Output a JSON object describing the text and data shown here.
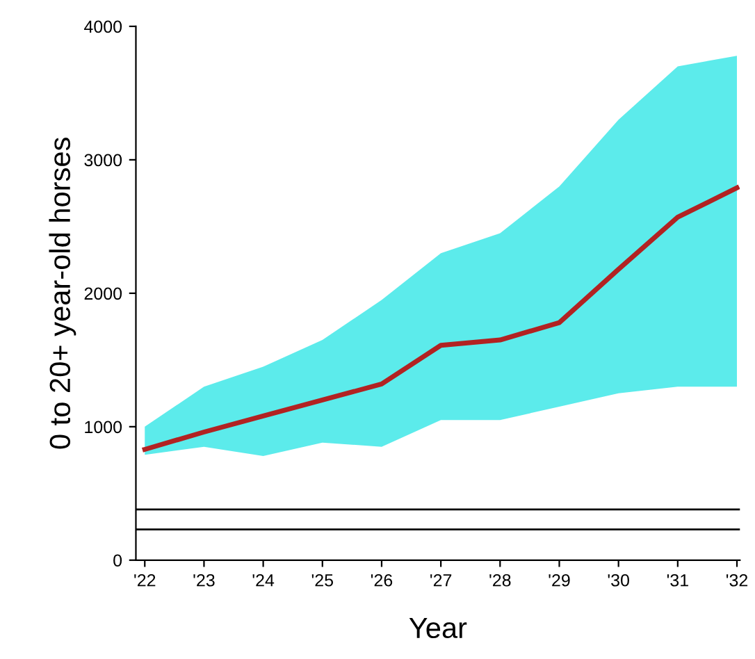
{
  "chart_data": {
    "type": "line",
    "xlabel": "Year",
    "ylabel": "0 to 20+ year-old horses",
    "categories": [
      "'22",
      "'23",
      "'24",
      "'25",
      "'26",
      "'27",
      "'28",
      "'29",
      "'30",
      "'31",
      "'32"
    ],
    "series": [
      {
        "color": "#b22222",
        "values": [
          830,
          960,
          1080,
          1200,
          1320,
          1610,
          1650,
          1780,
          2180,
          2570,
          2790
        ],
        "lower": [
          790,
          850,
          780,
          880,
          850,
          1050,
          1050,
          1150,
          1250,
          1300,
          1300
        ],
        "upper": [
          1000,
          1300,
          1450,
          1650,
          1950,
          2300,
          2450,
          2800,
          3300,
          3700,
          3780
        ]
      }
    ],
    "ylim": [
      0,
      4000
    ],
    "yticks": [
      0,
      1000,
      2000,
      3000,
      4000
    ],
    "grid": false,
    "legend": false,
    "marker": "none",
    "line_style": "solid",
    "ref_lines": [
      {
        "axis": "y",
        "value": 380,
        "color": "#000000"
      },
      {
        "axis": "y",
        "value": 230,
        "color": "#000000"
      }
    ]
  }
}
